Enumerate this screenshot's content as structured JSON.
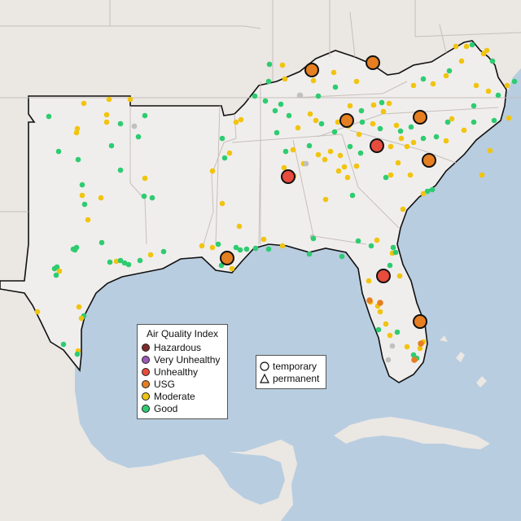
{
  "map": {
    "colors": {
      "water": "#b8cde0",
      "land_outside": "#ebe7e3",
      "land_region": "#f0eeec",
      "state_border": "#c6bfbb",
      "region_border": "#111111",
      "no_data": "#c0c0c0"
    },
    "aqi_legend": {
      "title": "Air Quality Index",
      "items": [
        {
          "label": "Hazardous",
          "color": "#7e2a2a"
        },
        {
          "label": "Very Unhealthy",
          "color": "#9b59b6"
        },
        {
          "label": "Unhealthy",
          "color": "#e74c3c"
        },
        {
          "label": "USG",
          "color": "#e67e22"
        },
        {
          "label": "Moderate",
          "color": "#f1c40f"
        },
        {
          "label": "Good",
          "color": "#2ecc71"
        }
      ]
    },
    "shape_legend": {
      "items": [
        {
          "label": "temporary",
          "shape": "circle"
        },
        {
          "label": "permanent",
          "shape": "triangle"
        }
      ]
    }
  }
}
